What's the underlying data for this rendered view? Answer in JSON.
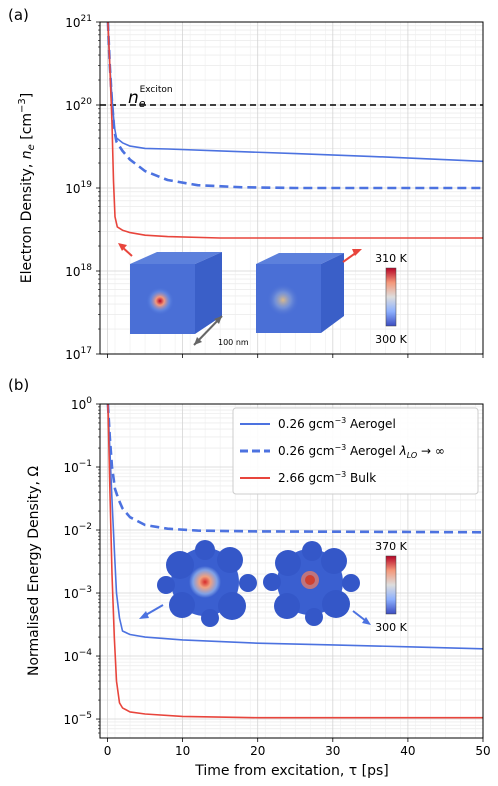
{
  "chart_data": [
    {
      "type": "line",
      "panel_label": "(a)",
      "ylabel": "Electron Density, n_e [cm^-3]",
      "ylabel_parts": {
        "pre": "Electron Density, ",
        "sym": "n",
        "sub": "e",
        "mid": " [cm",
        "sup": "−3",
        "post": "]"
      },
      "yscale": "log",
      "ylim": [
        1e+17,
        1e+21
      ],
      "xlim": [
        -1,
        50
      ],
      "xticks": [
        0,
        10,
        20,
        30,
        40,
        50
      ],
      "yticks": [
        {
          "value": 1e+17,
          "base": "10",
          "exp": "17"
        },
        {
          "value": 1e+18,
          "base": "10",
          "exp": "18"
        },
        {
          "value": 1e+19,
          "base": "10",
          "exp": "19"
        },
        {
          "value": 1e+20,
          "base": "10",
          "exp": "20"
        },
        {
          "value": 1e+21,
          "base": "10",
          "exp": "21"
        }
      ],
      "grid": true,
      "series": [
        {
          "color": "#4c72e0",
          "style": "solid",
          "x": [
            0.05,
            0.3,
            0.6,
            0.9,
            1.2,
            2,
            3,
            5,
            8,
            15,
            25,
            35,
            50
          ],
          "y": [
            1e+21,
            3e+20,
            1.2e+20,
            5.5e+19,
            4e+19,
            3.5e+19,
            3.2e+19,
            3e+19,
            2.95e+19,
            2.8e+19,
            2.6e+19,
            2.4e+19,
            2.1e+19
          ]
        },
        {
          "color": "#4c72e0",
          "style": "dashed",
          "x": [
            0.05,
            0.3,
            0.6,
            0.9,
            1.2,
            2,
            3,
            5,
            8,
            12,
            18,
            25,
            35,
            50
          ],
          "y": [
            1e+21,
            3e+20,
            1.1e+20,
            5e+19,
            3.6e+19,
            2.8e+19,
            2.2e+19,
            1.6e+19,
            1.25e+19,
            1.08e+19,
            1.02e+19,
            1e+19,
            1e+19,
            1e+19
          ]
        },
        {
          "color": "#e8453c",
          "style": "solid",
          "x": [
            0.05,
            0.3,
            0.6,
            0.8,
            1.0,
            1.3,
            2,
            3,
            5,
            8,
            15,
            25,
            35,
            50
          ],
          "y": [
            1e+21,
            3e+20,
            6e+19,
            1.2e+19,
            4.5e+18,
            3.4e+18,
            3.1e+18,
            2.9e+18,
            2.7e+18,
            2.6e+18,
            2.5e+18,
            2.5e+18,
            2.5e+18,
            2.5e+18
          ]
        }
      ],
      "hline": {
        "y": 1e+20,
        "color": "#000000",
        "style": "dashed",
        "label_sym": "n",
        "label_sub": "e",
        "label_sup": "Exciton"
      },
      "inset": {
        "colorbar_max": "310 K",
        "colorbar_min": "300 K",
        "scale_bar": "100 nm"
      }
    },
    {
      "type": "line",
      "panel_label": "(b)",
      "xlabel": "Time from excitation, τ [ps]",
      "ylabel": "Normalised Energy Density, Ω",
      "yscale": "log",
      "ylim": [
        5e-06,
        1
      ],
      "xlim": [
        -1,
        50
      ],
      "xticks": [
        0,
        10,
        20,
        30,
        40,
        50
      ],
      "yticks": [
        {
          "value": 1,
          "base": "10",
          "exp": "0"
        },
        {
          "value": 0.1,
          "base": "10",
          "exp": "−1"
        },
        {
          "value": 0.01,
          "base": "10",
          "exp": "−2"
        },
        {
          "value": 0.001,
          "base": "10",
          "exp": "−3"
        },
        {
          "value": 0.0001,
          "base": "10",
          "exp": "−4"
        },
        {
          "value": 1e-05,
          "base": "10",
          "exp": "−5"
        }
      ],
      "grid": true,
      "legend": {
        "position": "top-right"
      },
      "series": [
        {
          "name": "0.26 gcm−3 Aerogel",
          "name_parts": {
            "pre": "0.26 gcm",
            "sup": "−3",
            "post": " Aerogel"
          },
          "color": "#4c72e0",
          "style": "solid",
          "x": [
            0.05,
            0.3,
            0.6,
            0.9,
            1.2,
            1.6,
            2,
            3,
            5,
            10,
            20,
            30,
            40,
            50
          ],
          "y": [
            1,
            0.2,
            0.03,
            0.005,
            0.001,
            0.0004,
            0.00025,
            0.00022,
            0.0002,
            0.00018,
            0.00016,
            0.00015,
            0.00014,
            0.00013
          ]
        },
        {
          "name": "0.26 gcm−3 Aerogel λLO → ∞",
          "name_parts": {
            "pre": "0.26 gcm",
            "sup": "−3",
            "post": " Aerogel ",
            "lam": "λ",
            "lamsub": "LO",
            "tail": " → ∞"
          },
          "color": "#4c72e0",
          "style": "dashed",
          "x": [
            0.05,
            0.3,
            0.6,
            1.0,
            1.5,
            2,
            3,
            5,
            8,
            12,
            20,
            30,
            50
          ],
          "y": [
            1,
            0.3,
            0.1,
            0.045,
            0.03,
            0.022,
            0.016,
            0.012,
            0.0105,
            0.0098,
            0.0095,
            0.0094,
            0.0092
          ]
        },
        {
          "name": "2.66 gcm−3 Bulk",
          "name_parts": {
            "pre": "2.66 gcm",
            "sup": "−3",
            "post": " Bulk"
          },
          "color": "#e8453c",
          "style": "solid",
          "x": [
            0.05,
            0.3,
            0.6,
            0.9,
            1.2,
            1.6,
            2,
            3,
            5,
            10,
            20,
            30,
            50
          ],
          "y": [
            1,
            0.05,
            0.002,
            0.0002,
            4e-05,
            1.8e-05,
            1.5e-05,
            1.3e-05,
            1.2e-05,
            1.1e-05,
            1.05e-05,
            1.05e-05,
            1.05e-05
          ]
        }
      ],
      "inset": {
        "colorbar_max": "370 K",
        "colorbar_min": "300 K"
      }
    }
  ]
}
